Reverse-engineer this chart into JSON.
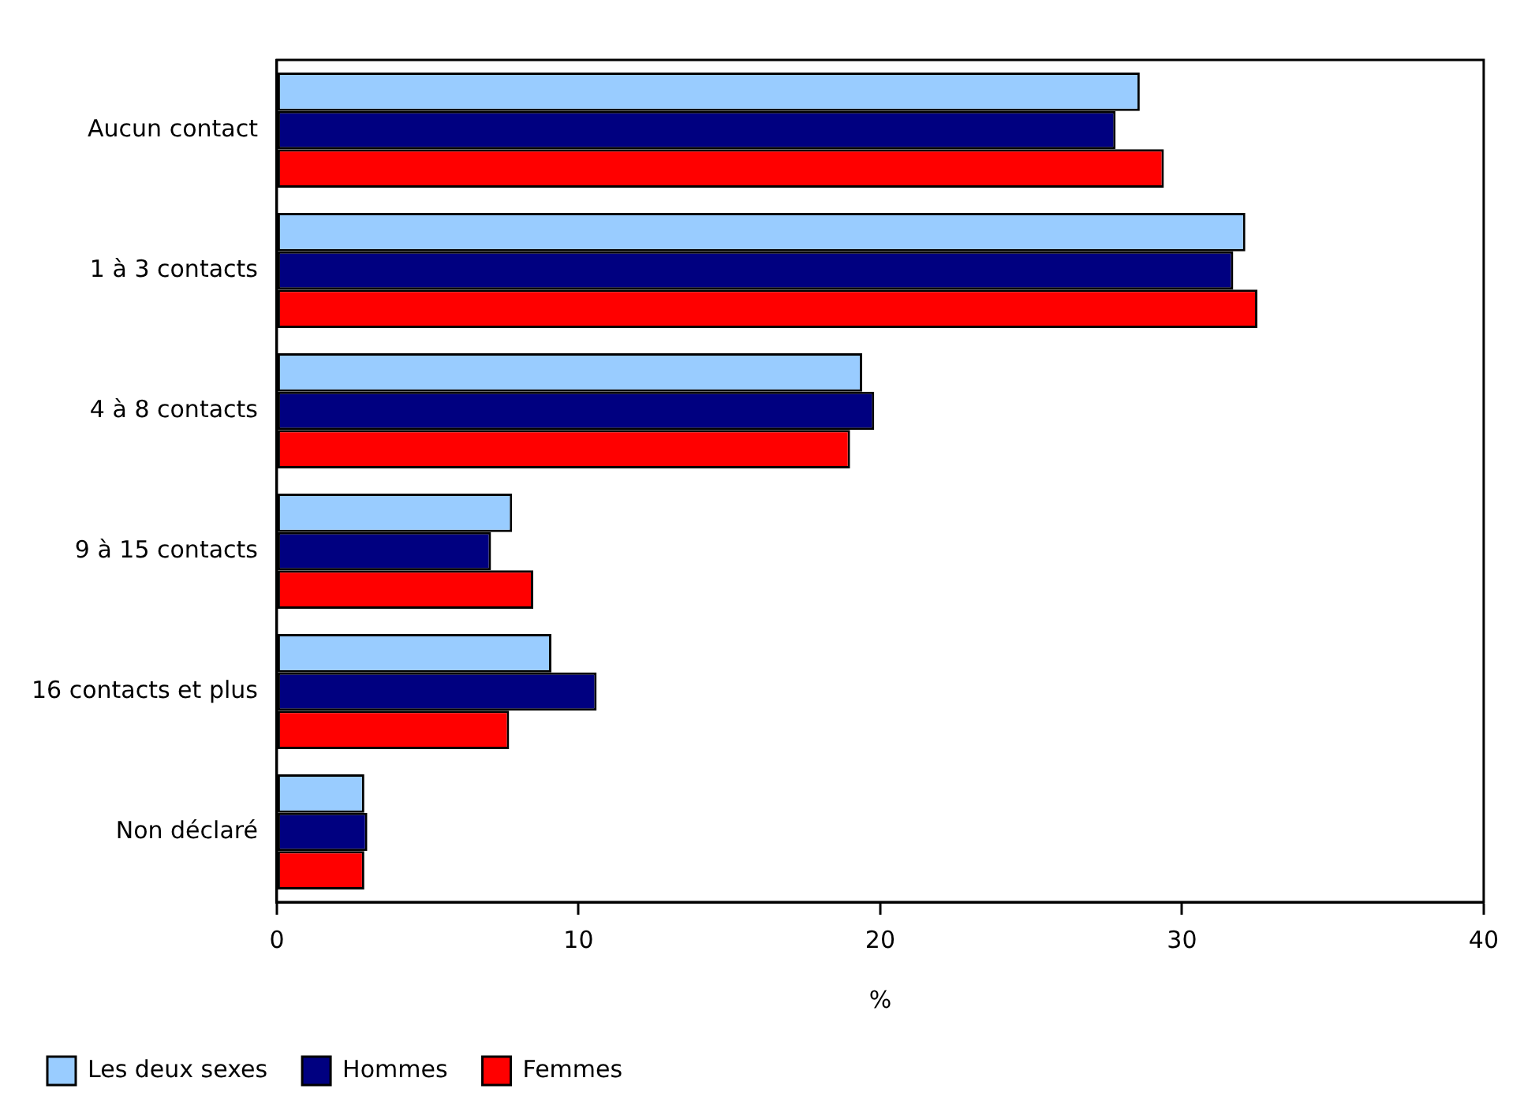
{
  "chart_data": {
    "type": "bar",
    "orientation": "horizontal",
    "xlabel": "%",
    "categories": [
      "Aucun contact",
      "1 à 3 contacts",
      "4 à 8 contacts",
      "9 à 15 contacts",
      "16 contacts et plus",
      "Non déclaré"
    ],
    "series": [
      {
        "name": "Les deux sexes",
        "color": "#99ccff",
        "values": [
          28.6,
          32.1,
          19.4,
          7.8,
          9.1,
          2.9
        ]
      },
      {
        "name": "Hommes",
        "color": "#000080",
        "values": [
          27.8,
          31.7,
          19.8,
          7.1,
          10.6,
          3.0
        ]
      },
      {
        "name": "Femmes",
        "color": "#ff0000",
        "values": [
          29.4,
          32.5,
          19.0,
          8.5,
          7.7,
          2.9
        ]
      }
    ],
    "xlim": [
      0,
      40
    ],
    "xticks": [
      0,
      10,
      20,
      30,
      40
    ],
    "grid": false,
    "legend": "bottom"
  }
}
